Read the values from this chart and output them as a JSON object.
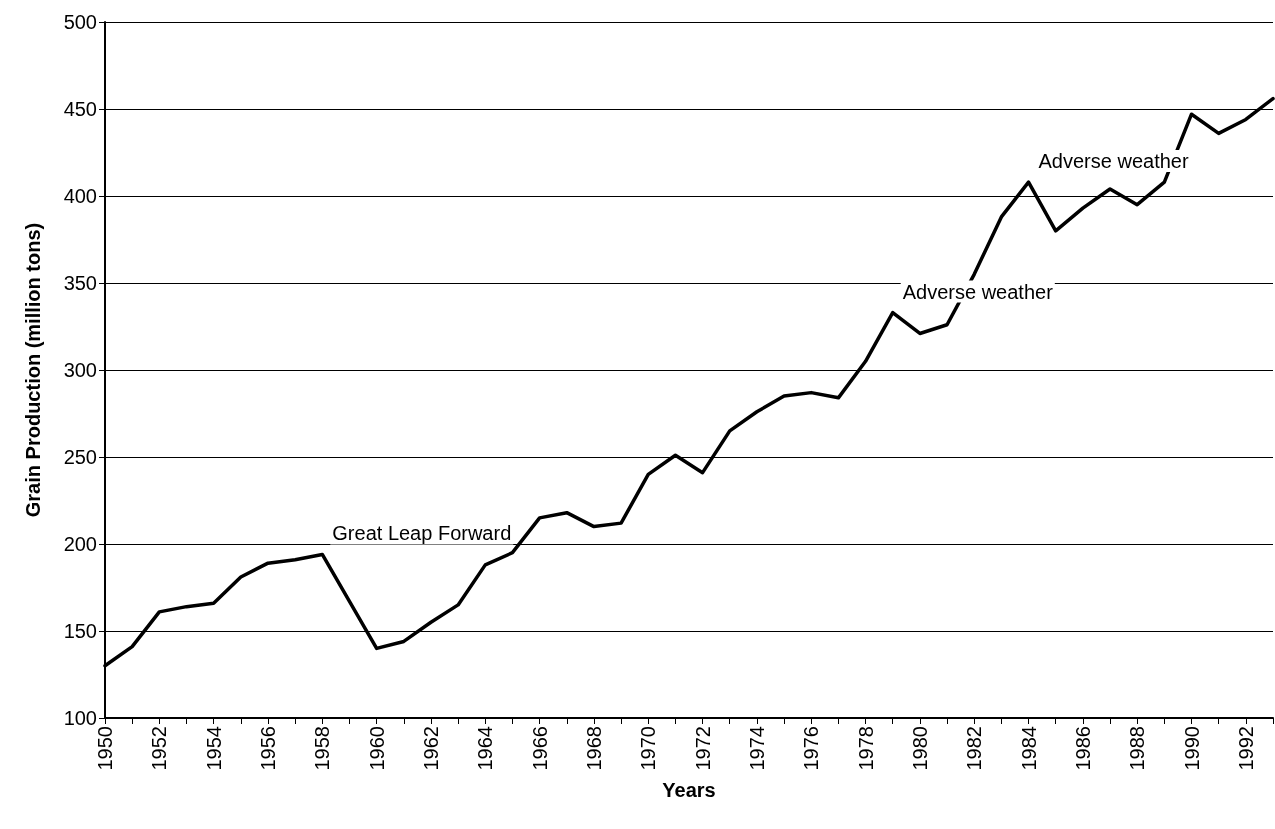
{
  "chart_data": {
    "type": "line",
    "xlabel": "Years",
    "ylabel": "Grain Production (million tons)",
    "x": [
      1950,
      1951,
      1952,
      1953,
      1954,
      1955,
      1956,
      1957,
      1958,
      1959,
      1960,
      1961,
      1962,
      1963,
      1964,
      1965,
      1966,
      1967,
      1968,
      1969,
      1970,
      1971,
      1972,
      1973,
      1974,
      1975,
      1976,
      1977,
      1978,
      1979,
      1980,
      1981,
      1982,
      1983,
      1984,
      1985,
      1986,
      1987,
      1988,
      1989,
      1990,
      1991,
      1992,
      1993
    ],
    "series": [
      {
        "color": "#000000",
        "values": [
          130,
          141,
          161,
          164,
          166,
          181,
          189,
          191,
          194,
          167,
          140,
          144,
          155,
          165,
          188,
          195,
          215,
          218,
          210,
          212,
          240,
          251,
          241,
          265,
          276,
          285,
          287,
          284,
          305,
          333,
          321,
          326,
          355,
          388,
          408,
          380,
          393,
          404,
          395,
          408,
          447,
          436,
          444,
          456
        ]
      }
    ],
    "xlim": [
      1950,
      1993
    ],
    "xticks": [
      1950,
      {
        "value": 1951,
        "label": null
      },
      1952,
      {
        "value": 1953,
        "label": null
      },
      1954,
      {
        "value": 1955,
        "label": null
      },
      1956,
      {
        "value": 1957,
        "label": null
      },
      1958,
      {
        "value": 1959,
        "label": null
      },
      1960,
      {
        "value": 1961,
        "label": null
      },
      1962,
      {
        "value": 1963,
        "label": null
      },
      1964,
      {
        "value": 1965,
        "label": null
      },
      1966,
      {
        "value": 1967,
        "label": null
      },
      1968,
      {
        "value": 1969,
        "label": null
      },
      1970,
      {
        "value": 1971,
        "label": null
      },
      1972,
      {
        "value": 1973,
        "label": null
      },
      1974,
      {
        "value": 1975,
        "label": null
      },
      1976,
      {
        "value": 1977,
        "label": null
      },
      1978,
      {
        "value": 1979,
        "label": null
      },
      1980,
      {
        "value": 1981,
        "label": null
      },
      1982,
      {
        "value": 1983,
        "label": null
      },
      1984,
      {
        "value": 1985,
        "label": null
      },
      1986,
      {
        "value": 1987,
        "label": null
      },
      1988,
      {
        "value": 1989,
        "label": null
      },
      1990,
      {
        "value": 1991,
        "label": null
      },
      1992,
      {
        "value": 1993,
        "label": null
      }
    ],
    "ylim": [
      100,
      500
    ],
    "yticks": [
      100,
      150,
      200,
      250,
      300,
      350,
      400,
      450,
      500
    ],
    "annotations": [
      {
        "text": "Great Leap Forward",
        "x": 1958,
        "y": 194
      },
      {
        "text": "Adverse weather",
        "x": 1979,
        "y": 333
      },
      {
        "text": "Adverse weather",
        "x": 1984,
        "y": 408
      }
    ],
    "grid": "y",
    "marker": "none",
    "line_style": "solid"
  }
}
